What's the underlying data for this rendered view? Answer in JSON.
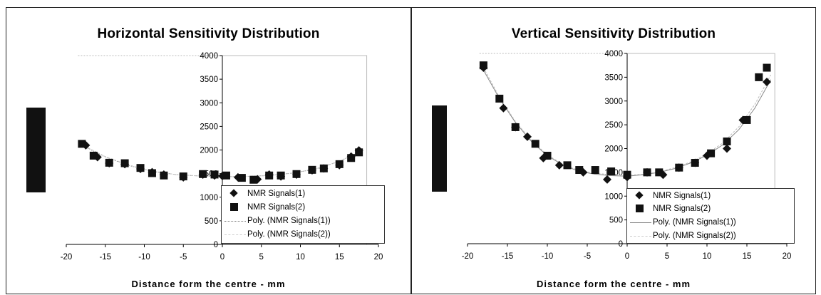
{
  "chart_data": [
    {
      "type": "scatter",
      "title": "Horizontal Sensitivity Distribution",
      "xlabel": "Distance form the centre - mm",
      "ylabel": "",
      "xlim": [
        -20,
        20
      ],
      "ylim": [
        0,
        4000
      ],
      "x_ticks": [
        "-20",
        "-15",
        "-10",
        "-5",
        "0",
        "5",
        "10",
        "15",
        "20"
      ],
      "y_ticks": [
        "0",
        "500",
        "1000",
        "1500",
        "2000",
        "2500",
        "3000",
        "3500",
        "4000"
      ],
      "grid": false,
      "legend_position": "bottom-right",
      "legend": [
        "NMR Signals(1)",
        "NMR Signals(2)",
        "Poly. (NMR Signals(1))",
        "Poly. (NMR Signals(2))"
      ],
      "series": [
        {
          "name": "NMR Signals(1)",
          "marker": "diamond",
          "x": [
            -17.5,
            -16,
            -14.5,
            -12.5,
            -10.5,
            -9,
            -7.5,
            -5,
            -2.5,
            -1,
            0,
            2,
            4.5,
            6,
            7.5,
            9.5,
            11.5,
            13,
            15,
            16.5,
            17.5
          ],
          "y": [
            2100,
            1850,
            1720,
            1700,
            1600,
            1530,
            1480,
            1420,
            1480,
            1460,
            1450,
            1420,
            1380,
            1480,
            1440,
            1480,
            1570,
            1610,
            1680,
            1860,
            1990
          ]
        },
        {
          "name": "NMR Signals(2)",
          "marker": "square",
          "x": [
            -18,
            -16.5,
            -14.5,
            -12.5,
            -10.5,
            -9,
            -7.5,
            -5,
            -2.5,
            -1,
            0.5,
            2.5,
            4,
            6,
            7.5,
            9.5,
            11.5,
            13,
            15,
            16.5,
            17.5
          ],
          "y": [
            2130,
            1880,
            1730,
            1720,
            1620,
            1510,
            1460,
            1440,
            1490,
            1480,
            1460,
            1410,
            1370,
            1460,
            1460,
            1490,
            1580,
            1610,
            1700,
            1830,
            1950
          ]
        },
        {
          "name": "Poly. (NMR Signals(1))",
          "style": "dotted",
          "x": [
            -18,
            -15,
            -12,
            -9,
            -6,
            -3,
            0,
            3,
            6,
            9,
            12,
            15,
            18
          ],
          "y": [
            2100,
            1850,
            1670,
            1550,
            1480,
            1450,
            1430,
            1440,
            1460,
            1510,
            1600,
            1760,
            2000
          ]
        },
        {
          "name": "Poly. (NMR Signals(2))",
          "style": "dashed",
          "x": [
            -18,
            -15,
            -12,
            -9,
            -6,
            -3,
            0,
            3,
            6,
            9,
            12,
            15,
            18
          ],
          "y": [
            2110,
            1860,
            1680,
            1550,
            1480,
            1450,
            1440,
            1440,
            1460,
            1510,
            1600,
            1760,
            1990
          ]
        }
      ]
    },
    {
      "type": "scatter",
      "title": "Vertical Sensitivity Distribution",
      "xlabel": "Distance form the centre - mm",
      "ylabel": "",
      "xlim": [
        -20,
        20
      ],
      "ylim": [
        0,
        4000
      ],
      "x_ticks": [
        "-20",
        "-15",
        "-10",
        "-5",
        "0",
        "5",
        "10",
        "15",
        "20"
      ],
      "y_ticks": [
        "0",
        "500",
        "1000",
        "1500",
        "2000",
        "2500",
        "3000",
        "3500",
        "4000"
      ],
      "grid": false,
      "legend_position": "bottom-right",
      "legend": [
        "NMR Signals(1)",
        "NMR Signals(2)",
        "Poly. (NMR Signals(1))",
        "Poly. (NMR Signals(2))"
      ],
      "series": [
        {
          "name": "NMR Signals(1)",
          "marker": "diamond",
          "x": [
            -18,
            -15.5,
            -14,
            -12.5,
            -10.5,
            -8.5,
            -5.5,
            -2.5,
            0,
            2.5,
            4.5,
            6.5,
            8.5,
            10,
            12.5,
            14.5,
            17.5
          ],
          "y": [
            3700,
            2850,
            2450,
            2250,
            1800,
            1650,
            1500,
            1350,
            1400,
            1500,
            1450,
            1600,
            1700,
            1850,
            2000,
            2600,
            3400
          ]
        },
        {
          "name": "NMR Signals(2)",
          "marker": "square",
          "x": [
            -18,
            -16,
            -14,
            -11.5,
            -10,
            -7.5,
            -6,
            -4,
            -2,
            0,
            2.5,
            4,
            6.5,
            8.5,
            10.5,
            12.5,
            15,
            16.5,
            17.5
          ],
          "y": [
            3750,
            3050,
            2450,
            2100,
            1850,
            1650,
            1550,
            1550,
            1520,
            1450,
            1500,
            1500,
            1600,
            1700,
            1900,
            2150,
            2600,
            3500,
            3700
          ]
        },
        {
          "name": "Poly. (NMR Signals(1))",
          "style": "solid",
          "x": [
            -18,
            -16,
            -14,
            -12,
            -10,
            -8,
            -6,
            -4,
            -2,
            0,
            2,
            4,
            6,
            8,
            10,
            12,
            14,
            16,
            18
          ],
          "y": [
            3650,
            3050,
            2550,
            2150,
            1850,
            1650,
            1520,
            1460,
            1430,
            1420,
            1450,
            1500,
            1580,
            1700,
            1860,
            2080,
            2400,
            2850,
            3450
          ]
        },
        {
          "name": "Poly. (NMR Signals(2))",
          "style": "dashed",
          "x": [
            -18,
            -16,
            -14,
            -12,
            -10,
            -8,
            -6,
            -4,
            -2,
            0,
            2,
            4,
            6,
            8,
            10,
            12,
            14,
            16,
            18
          ],
          "y": [
            3700,
            3080,
            2570,
            2170,
            1870,
            1660,
            1540,
            1480,
            1450,
            1440,
            1460,
            1510,
            1600,
            1720,
            1890,
            2120,
            2460,
            2930,
            3550
          ]
        }
      ]
    }
  ]
}
